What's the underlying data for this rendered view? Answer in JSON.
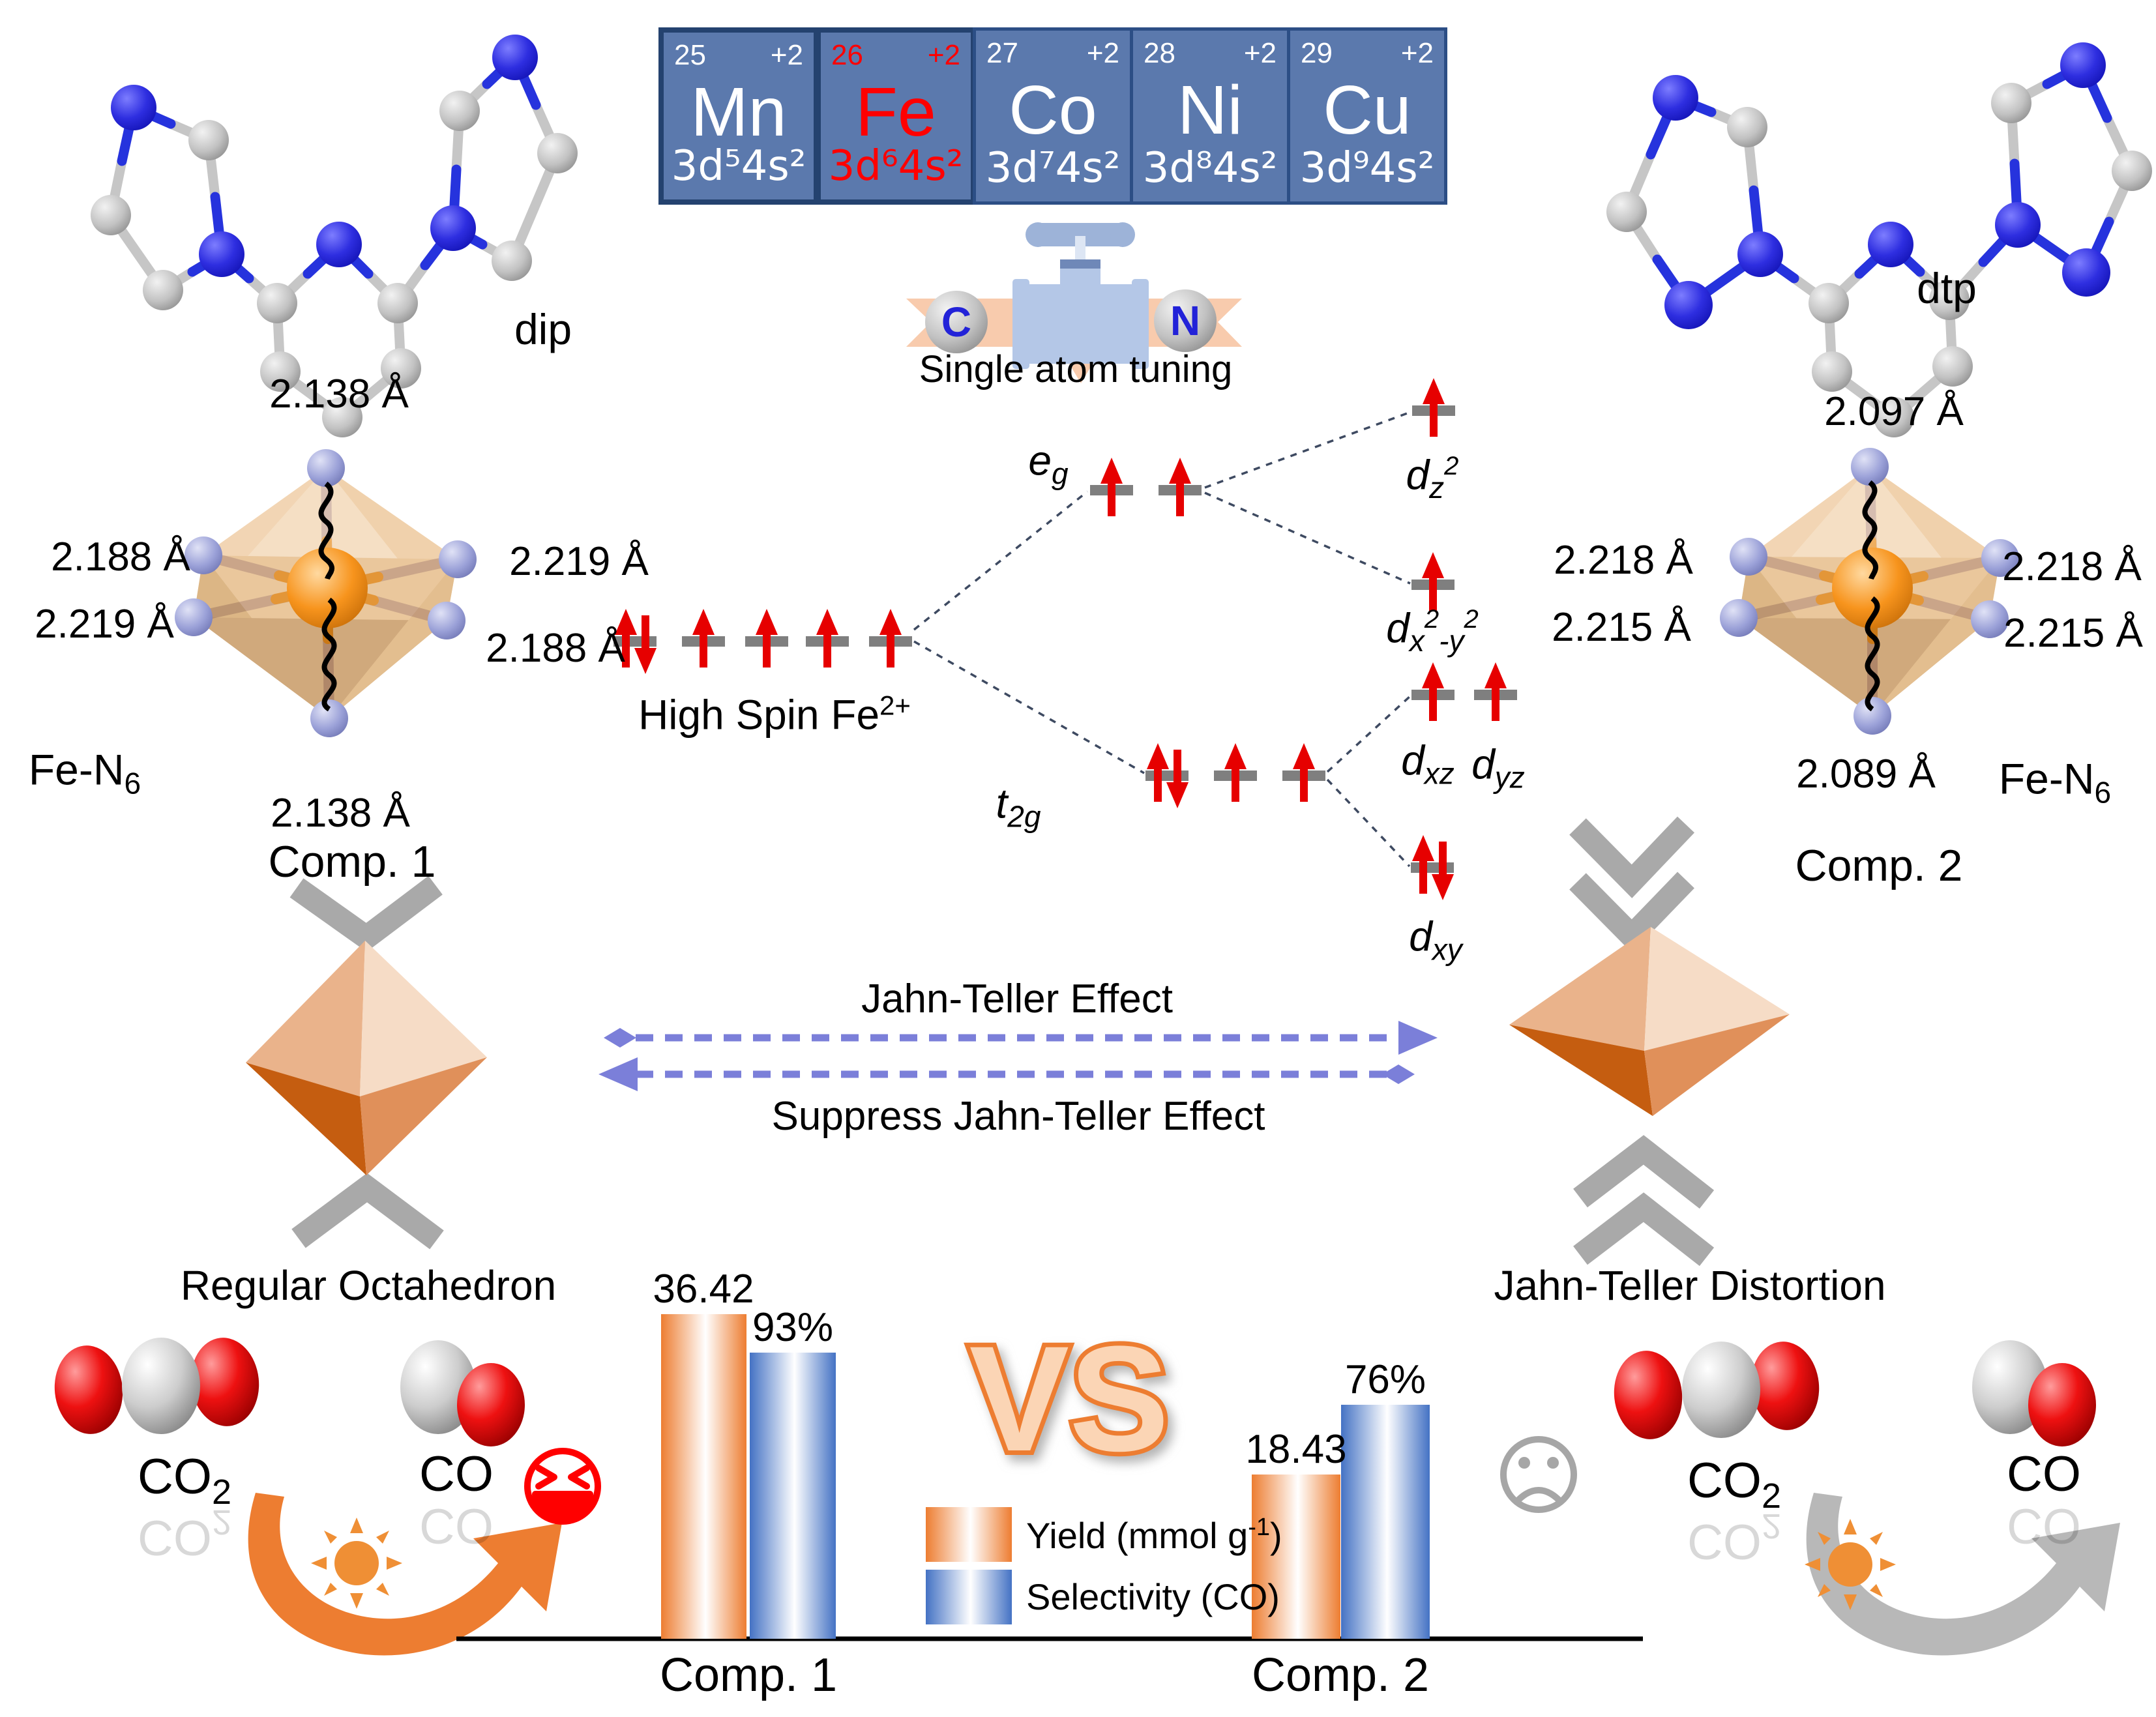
{
  "colors": {
    "accent_orange": "#ED7D31",
    "accent_blue": "#4472C4",
    "periodic_bg": "#5b79ad",
    "periodic_border": "#2c4e85",
    "highlight_red": "#ff0000",
    "level_gray": "#7f7f7f",
    "chevron_gray": "#a9a9a9",
    "dashed_arrow_purple": "#7b7fd9",
    "ribbon_peach": "#f8cbad",
    "valve_blue": "#b4c7e7"
  },
  "top": {
    "ligand_left_label": "dip",
    "ligand_right_label": "dtp",
    "periodic_cells": [
      {
        "number": "25",
        "charge": "+2",
        "symbol": "Mn",
        "config": "3d⁵4s²",
        "text_color": "#ffffff"
      },
      {
        "number": "26",
        "charge": "+2",
        "symbol": "Fe",
        "config": "3d⁶4s²",
        "text_color": "#ff0000"
      },
      {
        "number": "27",
        "charge": "+2",
        "symbol": "Co",
        "config": "3d⁷4s²",
        "text_color": "#ffffff"
      },
      {
        "number": "28",
        "charge": "+2",
        "symbol": "Ni",
        "config": "3d⁸4s²",
        "text_color": "#ffffff"
      },
      {
        "number": "29",
        "charge": "+2",
        "symbol": "Cu",
        "config": "3d⁹4s²",
        "text_color": "#ffffff"
      }
    ],
    "tuning": {
      "atom_c": "C",
      "atom_n": "N",
      "caption": "Single atom tuning",
      "valve_icon": "pipe-valve-icon"
    }
  },
  "middle": {
    "complex1": {
      "title": "Comp. 1",
      "formula_base": "Fe-N",
      "formula_sub": "6",
      "bond_top": "2.138 Å",
      "bond_left_upper": "2.188 Å",
      "bond_left_lower": "2.219 Å",
      "bond_right_upper": "2.219 Å",
      "bond_right_lower": "2.188 Å",
      "bond_bottom": "2.138 Å",
      "shape_label": "Regular Octahedron"
    },
    "complex2": {
      "title": "Comp. 2",
      "formula_base": "Fe-N",
      "formula_sub": "6",
      "bond_top": "2.097 Å",
      "bond_left_upper": "2.218 Å",
      "bond_left_lower": "2.215 Å",
      "bond_right_upper": "2.218 Å",
      "bond_right_lower": "2.215 Å",
      "bond_bottom": "2.089 Å",
      "shape_label": "Jahn-Teller Distortion"
    },
    "orbital_diagram": {
      "spin_label": "High Spin Fe",
      "spin_sup": "2+",
      "eg_base": "e",
      "eg_sub": "g",
      "t2g_base": "t",
      "t2g_sub": "2g",
      "dz2": {
        "base": "d",
        "sub": "z",
        "sup": "2"
      },
      "dx2y2": {
        "base": "d",
        "sub1": "x",
        "sup1": "2",
        "sub2": "-y",
        "sup2": "2"
      },
      "dxz": {
        "base": "d",
        "sub": "xz"
      },
      "dyz": {
        "base": "d",
        "sub": "yz"
      },
      "dxy": {
        "base": "d",
        "sub": "xy"
      },
      "occupancy": {
        "free_ion": [
          "paired",
          "up",
          "up",
          "up",
          "up"
        ],
        "eg": [
          "up",
          "up"
        ],
        "t2g": [
          "paired",
          "up",
          "up"
        ],
        "dz2": "up",
        "dx2y2": "up",
        "dxz": "up",
        "dyz": "up",
        "dxy": "paired"
      }
    },
    "jahn_teller": {
      "effect_label": "Jahn-Teller Effect",
      "suppress_label": "Suppress Jahn-Teller Effect"
    }
  },
  "bottom": {
    "reaction_left": {
      "reactant_base": "CO",
      "reactant_sub": "2",
      "product": "CO",
      "mood_icon": "laughing-face",
      "arrow_icon": "sun-photocatalysis-arrow"
    },
    "reaction_right": {
      "reactant_base": "CO",
      "reactant_sub": "2",
      "product": "CO",
      "mood_icon": "sad-face",
      "arrow_icon": "sun-photocatalysis-arrow"
    },
    "vs_label": "VS"
  },
  "chart_data": {
    "type": "bar",
    "categories": [
      "Comp. 1",
      "Comp. 2"
    ],
    "series": [
      {
        "name": "Yield (mmol g⁻¹)",
        "values": [
          36.42,
          18.43
        ],
        "labels": [
          "36.42",
          "18.43"
        ],
        "color": "#ED7D31"
      },
      {
        "name": "Selectivity (CO)",
        "values": [
          93,
          76
        ],
        "unit": "%",
        "labels": [
          "93%",
          "76%"
        ],
        "color": "#4472C4"
      }
    ],
    "legend": {
      "yield_pre": "Yield (mmol g",
      "yield_sup": "-1",
      "yield_post": ")",
      "selectivity_label": "Selectivity (CO)"
    },
    "axis": {
      "baseline": true,
      "grid": false
    },
    "legend_position": "center"
  }
}
